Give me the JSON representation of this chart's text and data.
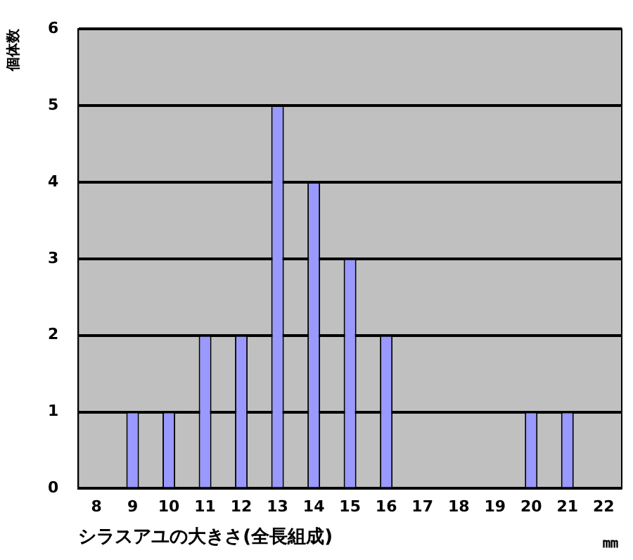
{
  "chart_data": {
    "type": "bar",
    "xlabel": "シラスアユの大きさ(全長組成)",
    "ylabel": "個体数",
    "annotations": [
      "㎜"
    ],
    "categories": [
      "8",
      "9",
      "10",
      "11",
      "12",
      "13",
      "14",
      "15",
      "16",
      "17",
      "18",
      "19",
      "20",
      "21",
      "22"
    ],
    "values": [
      0,
      1,
      1,
      2,
      2,
      5,
      4,
      3,
      2,
      0,
      0,
      0,
      1,
      1,
      0
    ],
    "color": "#9999ff",
    "ylim": [
      0,
      6
    ],
    "yticks": [
      0,
      1,
      2,
      3,
      4,
      5,
      6
    ],
    "grid": "y",
    "legend": false
  }
}
